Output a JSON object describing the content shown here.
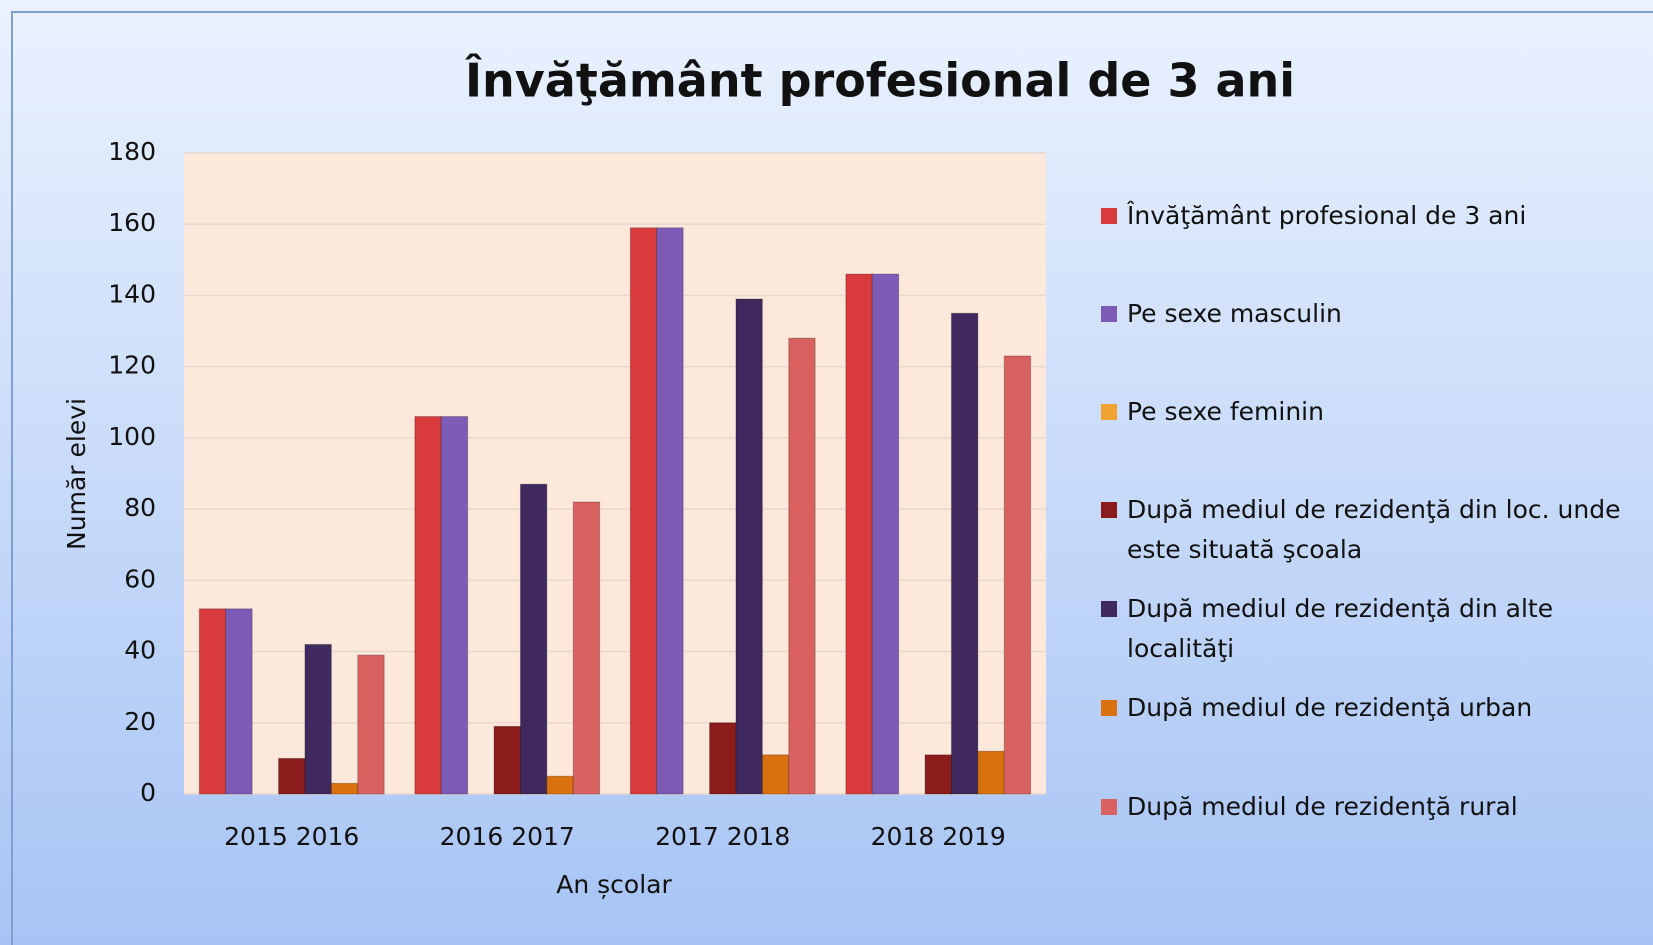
{
  "chart_data": {
    "type": "bar",
    "title": "Învăţământ profesional de 3 ani",
    "xlabel": "An școlar",
    "ylabel": "Număr elevi",
    "categories": [
      "2015 2016",
      "2016 2017",
      "2017 2018",
      "2018 2019"
    ],
    "series": [
      {
        "name": "Învăţământ profesional de 3 ani",
        "color": "#d93a3c",
        "values": [
          52,
          106,
          159,
          146
        ]
      },
      {
        "name": "Pe sexe masculin",
        "color": "#7d5cb8",
        "values": [
          52,
          106,
          159,
          146
        ]
      },
      {
        "name": "Pe sexe feminin",
        "color": "#f0a232",
        "values": [
          0,
          0,
          0,
          0
        ]
      },
      {
        "name": "După mediul de rezidenţă din loc. unde este situată şcoala",
        "color": "#8c1c1c",
        "values": [
          10,
          19,
          20,
          11
        ]
      },
      {
        "name": "După mediul de rezidenţă din alte localităţi",
        "color": "#40295f",
        "values": [
          42,
          87,
          139,
          135
        ]
      },
      {
        "name": "După mediul de rezidenţă urban",
        "color": "#d9720e",
        "values": [
          3,
          5,
          11,
          12
        ]
      },
      {
        "name": "După mediul de rezidenţă rural",
        "color": "#d9615f",
        "values": [
          39,
          82,
          128,
          123
        ]
      }
    ],
    "ylim": [
      0,
      180
    ],
    "yticks": [
      0,
      20,
      40,
      60,
      80,
      100,
      120,
      140,
      160,
      180
    ],
    "grid": true,
    "legend": "right"
  }
}
